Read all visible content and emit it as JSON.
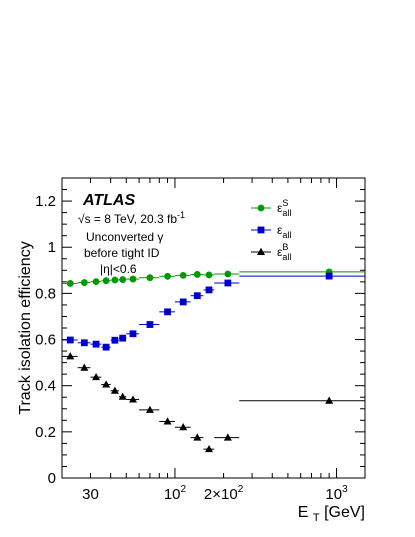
{
  "chart_data": {
    "type": "scatter",
    "title": "",
    "xlabel": "E_T [GeV]",
    "ylabel": "Track isolation efficiency",
    "xscale": "log",
    "xlim": [
      20,
      1500
    ],
    "ylim": [
      0,
      1.3
    ],
    "grid": false,
    "legend_position": "top-right",
    "x_ticks": [
      {
        "value": 30,
        "label": "30"
      },
      {
        "value": 100,
        "label": "10",
        "sup": "2"
      },
      {
        "value": 200,
        "label": "2×10",
        "sup": "2"
      },
      {
        "value": 1000,
        "label": "10",
        "sup": "3"
      }
    ],
    "y_ticks": [
      {
        "value": 0,
        "label": "0"
      },
      {
        "value": 0.2,
        "label": "0.2"
      },
      {
        "value": 0.4,
        "label": "0.4"
      },
      {
        "value": 0.6,
        "label": "0.6"
      },
      {
        "value": 0.8,
        "label": "0.8"
      },
      {
        "value": 1.0,
        "label": "1"
      },
      {
        "value": 1.2,
        "label": "1.2"
      }
    ],
    "annotations": {
      "experiment": "ATLAS",
      "energy": "√s = 8 TeV, 20.3 fb",
      "energy_sup": "-1",
      "line2": "Unconverted γ",
      "line3": "before tight ID",
      "line4": "|η|<0.6"
    },
    "series": [
      {
        "name": "ε_all^S",
        "legend_main": "ε",
        "legend_sup": "S",
        "legend_sub": "all",
        "color": "#009900",
        "marker": "circle",
        "points": [
          {
            "x": 22.5,
            "xlo": 20,
            "xhi": 25,
            "y": 0.843
          },
          {
            "x": 27.5,
            "xlo": 25,
            "xhi": 30,
            "y": 0.847
          },
          {
            "x": 32.5,
            "xlo": 30,
            "xhi": 35,
            "y": 0.851
          },
          {
            "x": 37.5,
            "xlo": 35,
            "xhi": 40,
            "y": 0.855
          },
          {
            "x": 42.5,
            "xlo": 40,
            "xhi": 45,
            "y": 0.858
          },
          {
            "x": 47.5,
            "xlo": 45,
            "xhi": 50,
            "y": 0.86
          },
          {
            "x": 55,
            "xlo": 50,
            "xhi": 60,
            "y": 0.862
          },
          {
            "x": 70,
            "xlo": 60,
            "xhi": 80,
            "y": 0.868
          },
          {
            "x": 90,
            "xlo": 80,
            "xhi": 100,
            "y": 0.874
          },
          {
            "x": 112.5,
            "xlo": 100,
            "xhi": 125,
            "y": 0.878
          },
          {
            "x": 137.5,
            "xlo": 125,
            "xhi": 150,
            "y": 0.882
          },
          {
            "x": 162.5,
            "xlo": 150,
            "xhi": 175,
            "y": 0.88
          },
          {
            "x": 212.5,
            "xlo": 175,
            "xhi": 250,
            "y": 0.884
          },
          {
            "x": 900,
            "xlo": 250,
            "xhi": 1500,
            "y": 0.893
          }
        ]
      },
      {
        "name": "ε_all",
        "legend_main": "ε",
        "legend_sup": "",
        "legend_sub": "all",
        "color": "#0000cc",
        "marker": "square",
        "points": [
          {
            "x": 22.5,
            "xlo": 20,
            "xhi": 25,
            "y": 0.598
          },
          {
            "x": 27.5,
            "xlo": 25,
            "xhi": 30,
            "y": 0.586
          },
          {
            "x": 32.5,
            "xlo": 30,
            "xhi": 35,
            "y": 0.58
          },
          {
            "x": 37.5,
            "xlo": 35,
            "xhi": 40,
            "y": 0.567
          },
          {
            "x": 42.5,
            "xlo": 40,
            "xhi": 45,
            "y": 0.597
          },
          {
            "x": 47.5,
            "xlo": 45,
            "xhi": 50,
            "y": 0.606
          },
          {
            "x": 55,
            "xlo": 50,
            "xhi": 60,
            "y": 0.625
          },
          {
            "x": 70,
            "xlo": 60,
            "xhi": 80,
            "y": 0.665
          },
          {
            "x": 90,
            "xlo": 80,
            "xhi": 100,
            "y": 0.72
          },
          {
            "x": 112.5,
            "xlo": 100,
            "xhi": 125,
            "y": 0.763
          },
          {
            "x": 137.5,
            "xlo": 125,
            "xhi": 150,
            "y": 0.79
          },
          {
            "x": 162.5,
            "xlo": 150,
            "xhi": 175,
            "y": 0.815
          },
          {
            "x": 212.5,
            "xlo": 175,
            "xhi": 250,
            "y": 0.845
          },
          {
            "x": 900,
            "xlo": 250,
            "xhi": 1500,
            "y": 0.875
          }
        ]
      },
      {
        "name": "ε_all^B",
        "legend_main": "ε",
        "legend_sup": "B",
        "legend_sub": "all",
        "color": "#000000",
        "marker": "triangle",
        "points": [
          {
            "x": 22.5,
            "xlo": 20,
            "xhi": 25,
            "y": 0.527
          },
          {
            "x": 27.5,
            "xlo": 25,
            "xhi": 30,
            "y": 0.478
          },
          {
            "x": 32.5,
            "xlo": 30,
            "xhi": 35,
            "y": 0.437
          },
          {
            "x": 37.5,
            "xlo": 35,
            "xhi": 40,
            "y": 0.405
          },
          {
            "x": 42.5,
            "xlo": 40,
            "xhi": 45,
            "y": 0.378
          },
          {
            "x": 47.5,
            "xlo": 45,
            "xhi": 50,
            "y": 0.352
          },
          {
            "x": 55,
            "xlo": 50,
            "xhi": 60,
            "y": 0.34
          },
          {
            "x": 70,
            "xlo": 60,
            "xhi": 80,
            "y": 0.295
          },
          {
            "x": 90,
            "xlo": 80,
            "xhi": 100,
            "y": 0.245
          },
          {
            "x": 112.5,
            "xlo": 100,
            "xhi": 125,
            "y": 0.22
          },
          {
            "x": 137.5,
            "xlo": 125,
            "xhi": 150,
            "y": 0.175
          },
          {
            "x": 162.5,
            "xlo": 150,
            "xhi": 175,
            "y": 0.125
          },
          {
            "x": 212.5,
            "xlo": 175,
            "xhi": 250,
            "y": 0.175
          },
          {
            "x": 900,
            "xlo": 250,
            "xhi": 1500,
            "y": 0.335
          }
        ]
      }
    ]
  }
}
